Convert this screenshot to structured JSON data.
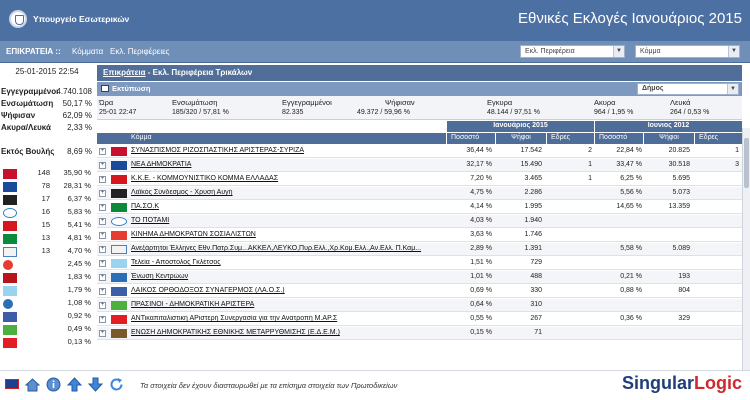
{
  "header": {
    "ministry": "Υπουργείο Εσωτερικών",
    "title": "Εθνικές Εκλογές Ιανουάριος 2015",
    "bg_color": "#4d70a3"
  },
  "nav": {
    "territory": "ΕΠΙΚΡΑΤΕΙΑ ::",
    "parties": "Κόμματα",
    "regions": "Εκλ. Περιφέρειες",
    "region_select": "Εκλ. Περιφέρεια",
    "party_select": "Κόμμα"
  },
  "left": {
    "datetime": "25-01-2015 22:54",
    "stats": [
      {
        "label": "Εγγεγραμμένοι",
        "value": "4.740.108"
      },
      {
        "label": "Ενσωμάτωση",
        "value": "50,17 %"
      },
      {
        "label": "Ψήφισαν",
        "value": "62,09 %"
      },
      {
        "label": "Ακυρα/Λευκά",
        "value": "2,33 %"
      }
    ],
    "outside": {
      "label": "Εκτός Βουλής",
      "value": "8,69 %"
    },
    "parties": [
      {
        "icon": "syriza-logo-icon",
        "seats": "148",
        "pct": "35,90 %"
      },
      {
        "icon": "nd-logo-icon",
        "seats": "78",
        "pct": "28,31 %"
      },
      {
        "icon": "xrysi-avgi-logo-icon",
        "seats": "17",
        "pct": "6,37 %"
      },
      {
        "icon": "potami-logo-icon",
        "seats": "16",
        "pct": "5,83 %"
      },
      {
        "icon": "kke-logo-icon",
        "seats": "15",
        "pct": "5,41 %"
      },
      {
        "icon": "pasok-logo-icon",
        "seats": "13",
        "pct": "4,81 %"
      },
      {
        "icon": "anel-logo-icon",
        "seats": "13",
        "pct": "4,70 %"
      },
      {
        "icon": "kidiso-logo-icon",
        "seats": "",
        "pct": "2,45 %"
      },
      {
        "icon": "ek-logo-icon",
        "seats": "",
        "pct": "1,83 %"
      },
      {
        "icon": "teleia-logo-icon",
        "seats": "",
        "pct": "1,79 %"
      },
      {
        "icon": "kentroon-logo-icon",
        "seats": "",
        "pct": "1,08 %"
      },
      {
        "icon": "laos-logo-icon",
        "seats": "",
        "pct": "0,92 %"
      },
      {
        "icon": "prasinoi-logo-icon",
        "seats": "",
        "pct": "0,49 %"
      },
      {
        "icon": "antarsya-logo-icon",
        "seats": "",
        "pct": "0,13 %"
      }
    ]
  },
  "main": {
    "breadcrumb_link": "Επικράτεια",
    "breadcrumb_rest": " - Εκλ. Περιφέρεια Τρικάλων",
    "print_label": "Εκτύπωση",
    "municipality_select": "Δήμος",
    "summary": {
      "headers": [
        "Ώρα",
        "Ενσωμάτωση",
        "Εγγεγραμμένοι",
        "Ψήφισαν",
        "Εγκυρα",
        "Ακυρα",
        "Λευκά"
      ],
      "values": [
        "25-01 22:47",
        "185/320 / 57,81 %",
        "82.335",
        "49.372 / 59,96 %",
        "48.144 / 97,51 %",
        "964 / 1,95 %",
        "264 / 0,53 %"
      ]
    },
    "table": {
      "group_2015": "Ιανουάριος 2015",
      "group_2012": "Ιουνιος 2012",
      "col_party": "Κόμμα",
      "col_pct": "Ποσοστό",
      "col_votes": "Ψήφοι",
      "col_seats": "Εδρες",
      "col_pct2": "Ποσοστό",
      "col_votes2": "Ψήφοι",
      "col_seats2": "Εδρες",
      "rows": [
        {
          "name": "ΣΥΝΑΣΠΙΣΜΟΣ ΡΙΖΟΣΠΑΣΤΙΚΗΣ ΑΡΙΣΤΕΡΑΣ-ΣΥΡΙΖΑ",
          "pct": "36,44 %",
          "votes": "17.542",
          "seats": "2",
          "pct2": "22,84 %",
          "votes2": "20.825",
          "seats2": "1"
        },
        {
          "name": "ΝΕΑ ΔΗΜΟΚΡΑΤΙΑ",
          "pct": "32,17 %",
          "votes": "15.490",
          "seats": "1",
          "pct2": "33,47 %",
          "votes2": "30.518",
          "seats2": "3"
        },
        {
          "name": "Κ.Κ.Ε. - ΚΟΜΜΟΥΝΙΣΤΙΚΟ ΚΟΜΜΑ ΕΛΛΑΔΑΣ",
          "pct": "7,20 %",
          "votes": "3.465",
          "seats": "1",
          "pct2": "6,25 %",
          "votes2": "5.695",
          "seats2": ""
        },
        {
          "name": "Λαϊκός Σύνδεσμος - Χρυσή Αυγή",
          "pct": "4,75 %",
          "votes": "2.286",
          "seats": "",
          "pct2": "5,56 %",
          "votes2": "5.073",
          "seats2": ""
        },
        {
          "name": "ΠΑ.ΣΟ.Κ",
          "pct": "4,14 %",
          "votes": "1.995",
          "seats": "",
          "pct2": "14,65 %",
          "votes2": "13.359",
          "seats2": ""
        },
        {
          "name": "ΤΟ ΠΟΤΑΜΙ",
          "pct": "4,03 %",
          "votes": "1.940",
          "seats": "",
          "pct2": "",
          "votes2": "",
          "seats2": ""
        },
        {
          "name": "ΚΙΝΗΜΑ ΔΗΜΟΚΡΑΤΩΝ ΣΟΣΙΑΛΙΣΤΩΝ",
          "pct": "3,63 %",
          "votes": "1.746",
          "seats": "",
          "pct2": "",
          "votes2": "",
          "seats2": ""
        },
        {
          "name": "Ανεξάρτητοι Έλληνες Εθν.Πατρ.Συμ...ΑΚΚΕΛ,ΛΕΥΚΟ,Πυρ.Ελλ.,Χρ.Κομ.Ελλ.,Αν.Ελλ. Π.Καμ...",
          "pct": "2,89 %",
          "votes": "1.391",
          "seats": "",
          "pct2": "5,58 %",
          "votes2": "5.089",
          "seats2": ""
        },
        {
          "name": "Τελεία - Απόστολος Γκλέτσος",
          "pct": "1,51 %",
          "votes": "729",
          "seats": "",
          "pct2": "",
          "votes2": "",
          "seats2": ""
        },
        {
          "name": "Ένωση Κεντρώων",
          "pct": "1,01 %",
          "votes": "488",
          "seats": "",
          "pct2": "0,21 %",
          "votes2": "193",
          "seats2": ""
        },
        {
          "name": "ΛΑΪΚΟΣ ΟΡΘΟΔΟΞΟΣ ΣΥΝΑΓΕΡΜΟΣ (ΛΑ.Ο.Σ.)",
          "pct": "0,69 %",
          "votes": "330",
          "seats": "",
          "pct2": "0,88 %",
          "votes2": "804",
          "seats2": ""
        },
        {
          "name": "ΠΡΑΣΙΝΟΙ - ΔΗΜΟΚΡΑΤΙΚΗ ΑΡΙΣΤΕΡΑ",
          "pct": "0,64 %",
          "votes": "310",
          "seats": "",
          "pct2": "",
          "votes2": "",
          "seats2": ""
        },
        {
          "name": "ΑΝΤικαπιταλιστική ΑΡιστερή Συνεργασία για την Ανατροπή Μ.ΑΡ.Σ",
          "pct": "0,55 %",
          "votes": "267",
          "seats": "",
          "pct2": "0,36 %",
          "votes2": "329",
          "seats2": ""
        },
        {
          "name": "ΕΝΩΣΗ ΔΗΜΟΚΡΑΤΙΚΗΣ ΕΘΝΙΚΗΣ ΜΕΤΑΡΡΥΘΜΙΣΗΣ (Ε.Δ.Ε.Μ.)",
          "pct": "0,15 %",
          "votes": "71",
          "seats": "",
          "pct2": "",
          "votes2": "",
          "seats2": ""
        }
      ]
    }
  },
  "footer": {
    "note": "Τα στοιχεία δεν έχουν διασταυρωθεί με τα επίσημα στοιχεία των Πρωτοδικείων",
    "brand_a": "Singular",
    "brand_b": "Logic"
  }
}
